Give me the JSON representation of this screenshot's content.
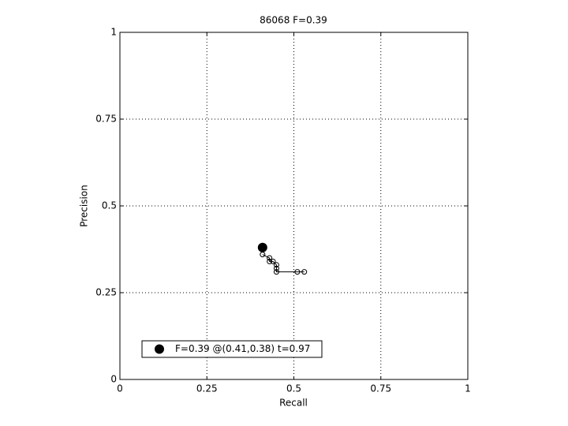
{
  "chart_data": {
    "type": "line",
    "title": "86068 F=0.39",
    "xlabel": "Recall",
    "ylabel": "Precision",
    "xlim": [
      0,
      1
    ],
    "ylim": [
      0,
      1
    ],
    "xticks": [
      0,
      0.25,
      0.5,
      0.75,
      1
    ],
    "yticks": [
      0,
      0.25,
      0.5,
      0.75,
      1
    ],
    "grid": true,
    "legend": "lower left",
    "series": [
      {
        "color": "#000000",
        "style": "line-circles",
        "x": [
          0.41,
          0.43,
          0.43,
          0.44,
          0.45,
          0.45,
          0.45,
          0.51,
          0.53
        ],
        "values": [
          0.36,
          0.35,
          0.34,
          0.34,
          0.33,
          0.32,
          0.31,
          0.31,
          0.31
        ]
      },
      {
        "name": "F=0.39 @(0.41,0.38) t=0.97",
        "color": "#000000",
        "style": "dot",
        "x": [
          0.41
        ],
        "values": [
          0.38
        ]
      }
    ]
  }
}
